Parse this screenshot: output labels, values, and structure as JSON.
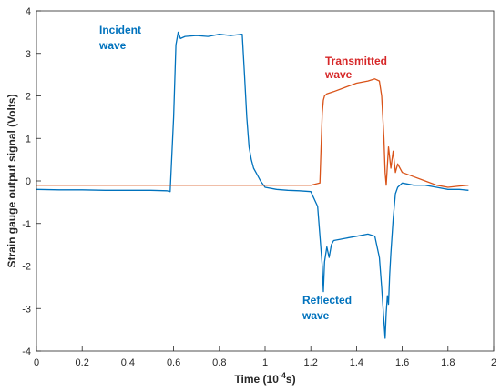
{
  "chart_data": {
    "type": "line",
    "xlabel": "Time (10",
    "xlabel_exponent": "-4",
    "xlabel_unit": "s)",
    "ylabel": "Strain gauge output signal (Volts)",
    "xlim": [
      0,
      2
    ],
    "ylim": [
      -4,
      4
    ],
    "x_ticks": [
      "0",
      "0.2",
      "0.4",
      "0.6",
      "0.8",
      "1",
      "1.2",
      "1.4",
      "1.6",
      "1.8",
      "2"
    ],
    "y_ticks": [
      "-4",
      "-3",
      "-2",
      "-1",
      "0",
      "1",
      "2",
      "3",
      "4"
    ],
    "grid": false,
    "annotations": {
      "incident": [
        "Incident",
        "wave"
      ],
      "transmitted": [
        "Transmitted",
        "wave"
      ],
      "reflected": [
        "Reflected",
        "wave"
      ]
    },
    "series": [
      {
        "key": "incident-reflected",
        "color": "#0072BD",
        "x": [
          0,
          0.1,
          0.2,
          0.3,
          0.4,
          0.5,
          0.57,
          0.585,
          0.6,
          0.61,
          0.62,
          0.63,
          0.65,
          0.7,
          0.75,
          0.8,
          0.85,
          0.9,
          0.91,
          0.92,
          0.93,
          0.94,
          0.95,
          0.96,
          0.98,
          1.0,
          1.05,
          1.1,
          1.15,
          1.2,
          1.23,
          1.25,
          1.255,
          1.26,
          1.27,
          1.28,
          1.29,
          1.3,
          1.35,
          1.4,
          1.45,
          1.48,
          1.5,
          1.51,
          1.52,
          1.525,
          1.53,
          1.535,
          1.54,
          1.545,
          1.55,
          1.56,
          1.57,
          1.58,
          1.6,
          1.65,
          1.7,
          1.75,
          1.8,
          1.85,
          1.89
        ],
        "y": [
          -0.2,
          -0.21,
          -0.21,
          -0.22,
          -0.22,
          -0.22,
          -0.23,
          -0.25,
          1.5,
          3.2,
          3.5,
          3.35,
          3.4,
          3.42,
          3.4,
          3.45,
          3.42,
          3.45,
          2.5,
          1.5,
          0.8,
          0.5,
          0.3,
          0.2,
          0.0,
          -0.15,
          -0.2,
          -0.22,
          -0.23,
          -0.25,
          -0.6,
          -2.0,
          -2.6,
          -1.9,
          -1.55,
          -1.8,
          -1.5,
          -1.4,
          -1.35,
          -1.3,
          -1.25,
          -1.3,
          -1.8,
          -2.5,
          -3.3,
          -3.7,
          -3.1,
          -2.7,
          -2.9,
          -2.2,
          -1.7,
          -0.9,
          -0.3,
          -0.15,
          -0.05,
          -0.1,
          -0.1,
          -0.15,
          -0.2,
          -0.2,
          -0.22
        ]
      },
      {
        "key": "transmitted",
        "color": "#D95319",
        "x": [
          0,
          0.2,
          0.4,
          0.6,
          0.8,
          1.0,
          1.1,
          1.2,
          1.24,
          1.245,
          1.25,
          1.255,
          1.26,
          1.27,
          1.3,
          1.35,
          1.4,
          1.45,
          1.48,
          1.5,
          1.51,
          1.52,
          1.525,
          1.53,
          1.54,
          1.55,
          1.56,
          1.57,
          1.58,
          1.6,
          1.65,
          1.7,
          1.75,
          1.8,
          1.85,
          1.89
        ],
        "y": [
          -0.1,
          -0.1,
          -0.1,
          -0.1,
          -0.1,
          -0.1,
          -0.1,
          -0.1,
          -0.05,
          0.8,
          1.6,
          1.9,
          2.0,
          2.05,
          2.1,
          2.2,
          2.3,
          2.35,
          2.4,
          2.35,
          2.0,
          1.0,
          0.2,
          -0.1,
          0.8,
          0.3,
          0.7,
          0.2,
          0.4,
          0.2,
          0.1,
          0.0,
          -0.1,
          -0.15,
          -0.12,
          -0.1
        ]
      }
    ]
  }
}
